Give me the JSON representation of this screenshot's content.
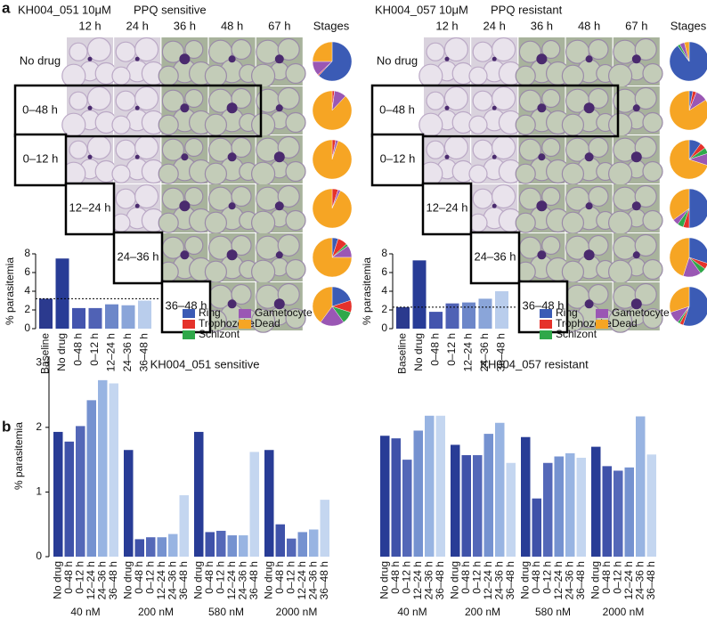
{
  "panel_a": {
    "label": "a",
    "left": {
      "strain": "KH004_051",
      "dose": "10μM",
      "phenotype": "PPQ sensitive",
      "times": [
        "12 h",
        "24 h",
        "36 h",
        "48 h",
        "67 h"
      ],
      "stages_header": "Stages",
      "rows": [
        "No drug",
        "0–48 h",
        "0–12 h",
        "12–24 h",
        "24–36 h",
        "36–48 h"
      ]
    },
    "right": {
      "strain": "KH004_057",
      "dose": "10μM",
      "phenotype": "PPQ resistant",
      "times": [
        "12 h",
        "24 h",
        "36 h",
        "48 h",
        "67 h"
      ],
      "stages_header": "Stages",
      "rows": [
        "No drug",
        "0–48 h",
        "0–12 h",
        "12–24 h",
        "24–36 h",
        "36–48 h"
      ]
    }
  },
  "panel_b": {
    "label": "b"
  },
  "chart_data": [
    {
      "type": "pie",
      "categories": [
        "Ring",
        "Trophozoite",
        "Schizont",
        "Gametocyte",
        "Dead"
      ],
      "colors": [
        "#3b5bb5",
        "#e5322b",
        "#2fa84a",
        "#9a57b4",
        "#f6a524"
      ],
      "values": [
        [
          62,
          1,
          0,
          12,
          25
        ],
        [
          0,
          2,
          0,
          10,
          88
        ],
        [
          0,
          3,
          0,
          2,
          95
        ],
        [
          0,
          5,
          0,
          2,
          93
        ],
        [
          5,
          8,
          2,
          10,
          75
        ],
        [
          20,
          10,
          10,
          20,
          40
        ]
      ]
    },
    {
      "type": "bar",
      "y_label": "% parasitemia",
      "categories": [
        "Baseline",
        "No drug",
        "0–48 h",
        "0–12 h",
        "12–24 h",
        "24–36 h",
        "36–48 h"
      ],
      "values": [
        3.2,
        7.5,
        2.2,
        2.2,
        2.6,
        2.5,
        3.0
      ],
      "colors": [
        "#2b3a8e",
        "#283c96",
        "#4455ae",
        "#5062b5",
        "#6d87c9",
        "#8aa5d9",
        "#b9cdec"
      ],
      "ylim": [
        0,
        8
      ],
      "yticks": [
        0,
        2,
        4,
        6,
        8
      ],
      "baseline_reference": true
    },
    {
      "type": "pie",
      "categories": [
        "Ring",
        "Trophozoite",
        "Schizont",
        "Gametocyte",
        "Dead"
      ],
      "colors": [
        "#3b5bb5",
        "#e5322b",
        "#2fa84a",
        "#9a57b4",
        "#f6a524"
      ],
      "values": [
        [
          90,
          0,
          2,
          4,
          4
        ],
        [
          3,
          3,
          0,
          10,
          84
        ],
        [
          10,
          5,
          5,
          10,
          70
        ],
        [
          50,
          5,
          5,
          5,
          35
        ],
        [
          30,
          5,
          5,
          15,
          45
        ],
        [
          55,
          3,
          2,
          10,
          30
        ]
      ]
    },
    {
      "type": "bar",
      "y_label": "% parasitemia",
      "categories": [
        "Baseline",
        "No drug",
        "0–48 h",
        "0–12 h",
        "12–24 h",
        "24–36 h",
        "36–48 h"
      ],
      "values": [
        2.3,
        7.3,
        1.8,
        2.7,
        2.8,
        3.2,
        4.0
      ],
      "colors": [
        "#2b3a8e",
        "#283c96",
        "#4455ae",
        "#5062b5",
        "#6d87c9",
        "#8aa5d9",
        "#b9cdec"
      ],
      "ylim": [
        0,
        8
      ],
      "yticks": [
        0,
        2,
        4,
        6,
        8
      ],
      "baseline_reference": true
    },
    {
      "type": "grouped_bar",
      "title": "KH004_051 sensitive",
      "title_color": "#3b5bb5",
      "y_label": "% parasitemia",
      "categories": [
        "40 nM",
        "200 nM",
        "580 nM",
        "2000 nM"
      ],
      "series": [
        {
          "name": "No drug",
          "color": "#283c96",
          "values": [
            1.93,
            1.65,
            1.93,
            1.65
          ]
        },
        {
          "name": "0–48 h",
          "color": "#3f52a9",
          "values": [
            1.78,
            0.27,
            0.38,
            0.5
          ]
        },
        {
          "name": "0–12 h",
          "color": "#5468b8",
          "values": [
            2.02,
            0.3,
            0.4,
            0.28
          ]
        },
        {
          "name": "12–24 h",
          "color": "#7592d0",
          "values": [
            2.42,
            0.3,
            0.33,
            0.38
          ]
        },
        {
          "name": "24–36 h",
          "color": "#98b4e2",
          "values": [
            2.73,
            0.35,
            0.33,
            0.42
          ]
        },
        {
          "name": "36–48 h",
          "color": "#c4d6f0",
          "values": [
            2.68,
            0.95,
            1.62,
            0.88
          ]
        }
      ],
      "ylim": [
        0,
        3.1
      ],
      "yticks": [
        0,
        1,
        2,
        3
      ]
    },
    {
      "type": "grouped_bar",
      "title": "KH004_057 resistant",
      "title_color": "#e5322b",
      "categories": [
        "40 nM",
        "200 nM",
        "580 nM",
        "2000 nM"
      ],
      "series": [
        {
          "name": "No drug",
          "color": "#283c96",
          "values": [
            1.87,
            1.73,
            1.85,
            1.7
          ]
        },
        {
          "name": "0–48 h",
          "color": "#3f52a9",
          "values": [
            1.83,
            1.57,
            0.9,
            1.4
          ]
        },
        {
          "name": "0–12 h",
          "color": "#5468b8",
          "values": [
            1.5,
            1.57,
            1.45,
            1.33
          ]
        },
        {
          "name": "12–24 h",
          "color": "#7592d0",
          "values": [
            1.95,
            1.9,
            1.55,
            1.38
          ]
        },
        {
          "name": "24–36 h",
          "color": "#98b4e2",
          "values": [
            2.18,
            2.07,
            1.6,
            2.17
          ]
        },
        {
          "name": "36–48 h",
          "color": "#c4d6f0",
          "values": [
            2.18,
            1.45,
            1.53,
            1.58
          ]
        }
      ],
      "ylim": [
        0,
        3.1
      ]
    }
  ]
}
